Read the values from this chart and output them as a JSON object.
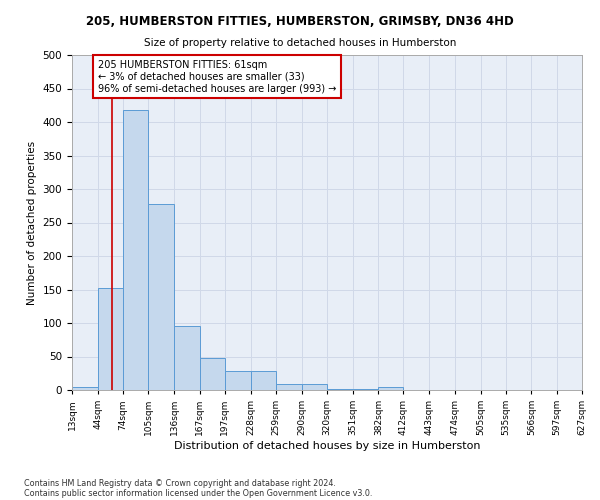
{
  "title1": "205, HUMBERSTON FITTIES, HUMBERSTON, GRIMSBY, DN36 4HD",
  "title2": "Size of property relative to detached houses in Humberston",
  "xlabel": "Distribution of detached houses by size in Humberston",
  "ylabel": "Number of detached properties",
  "footnote1": "Contains HM Land Registry data © Crown copyright and database right 2024.",
  "footnote2": "Contains public sector information licensed under the Open Government Licence v3.0.",
  "annotation_line1": "205 HUMBERSTON FITTIES: 61sqm",
  "annotation_line2": "← 3% of detached houses are smaller (33)",
  "annotation_line3": "96% of semi-detached houses are larger (993) →",
  "bar_edges": [
    13,
    44,
    74,
    105,
    136,
    167,
    197,
    228,
    259,
    290,
    320,
    351,
    382,
    412,
    443,
    474,
    505,
    535,
    566,
    597,
    627
  ],
  "bar_heights": [
    5,
    152,
    418,
    277,
    95,
    48,
    29,
    29,
    9,
    9,
    1,
    1,
    4,
    0,
    0,
    0,
    0,
    0,
    0,
    0
  ],
  "bar_color": "#c5d8ed",
  "bar_edge_color": "#5b9bd5",
  "property_line_x": 61,
  "property_line_color": "#cc0000",
  "annotation_box_color": "#cc0000",
  "ylim": [
    0,
    500
  ],
  "yticks": [
    0,
    50,
    100,
    150,
    200,
    250,
    300,
    350,
    400,
    450,
    500
  ],
  "grid_color": "#d0d8e8",
  "bg_color": "#e8eef7"
}
